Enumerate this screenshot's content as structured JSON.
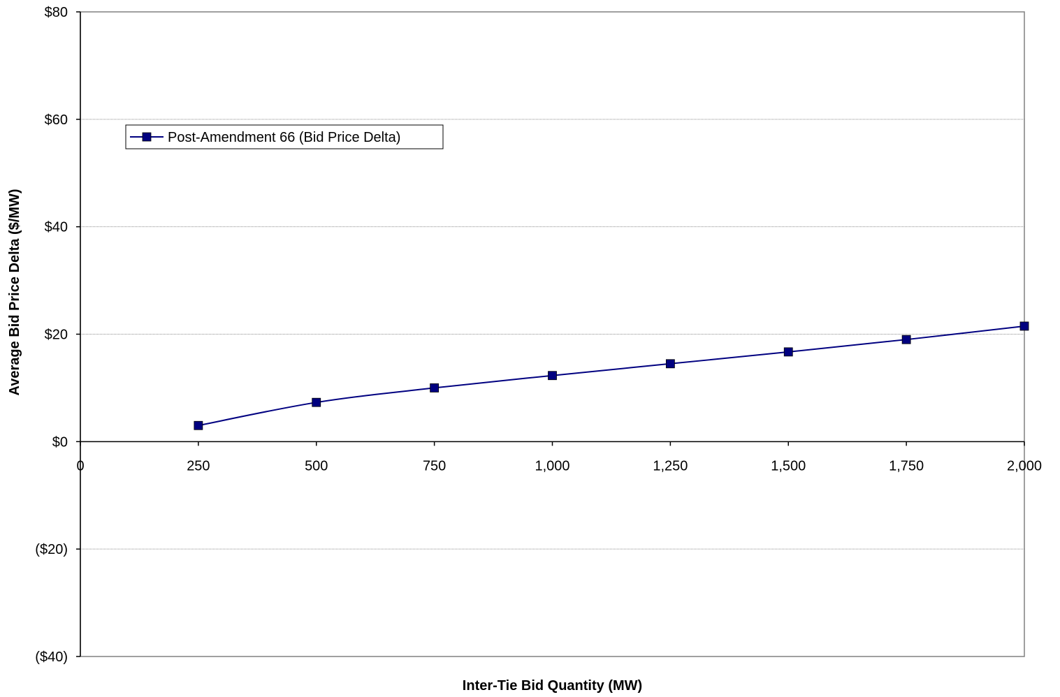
{
  "chart_data": {
    "type": "line",
    "title": "",
    "xlabel": "Inter-Tie Bid Quantity (MW)",
    "ylabel": "Average Bid Price Delta ($/MW)",
    "xlim": [
      0,
      2000
    ],
    "ylim": [
      -40,
      80
    ],
    "x_ticks": [
      0,
      250,
      500,
      750,
      1000,
      1250,
      1500,
      1750,
      2000
    ],
    "x_tick_labels": [
      "0",
      "250",
      "500",
      "750",
      "1,000",
      "1,250",
      "1,500",
      "1,750",
      "2,000"
    ],
    "y_ticks": [
      80,
      60,
      40,
      20,
      0,
      -20,
      -40
    ],
    "y_tick_labels": [
      "$80",
      "$60",
      "$40",
      "$20",
      "$0",
      "($20)",
      "($40)"
    ],
    "grid": "horizontal",
    "legend_position": "top-left",
    "series": [
      {
        "name": "Post-Amendment 66 (Bid Price Delta)",
        "color": "#000080",
        "marker": "square",
        "x": [
          250,
          500,
          750,
          1000,
          1250,
          1500,
          1750,
          2000
        ],
        "y": [
          3.0,
          7.3,
          10.0,
          12.3,
          14.5,
          16.7,
          19.0,
          21.5
        ]
      }
    ]
  }
}
